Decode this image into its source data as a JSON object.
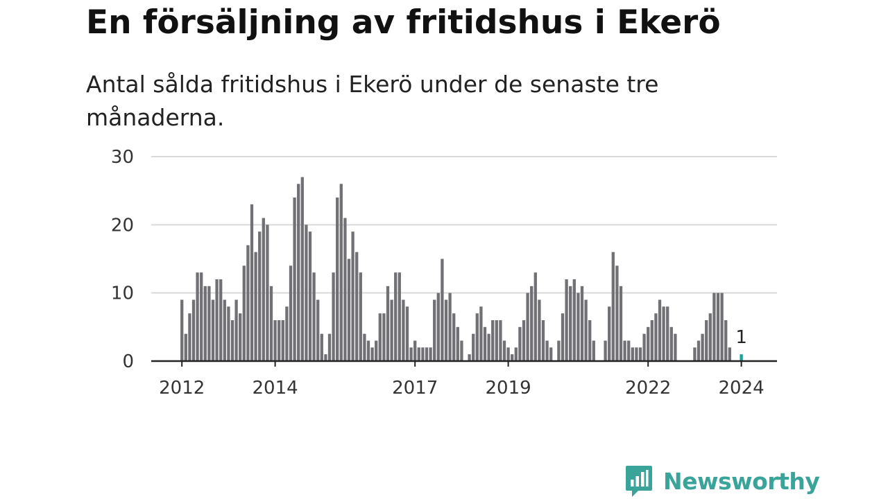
{
  "title": "En försäljning av fritidshus i Ekerö",
  "subtitle": "Antal sålda fritidshus i Ekerö under de senaste tre månaderna.",
  "brand": {
    "name": "Newsworthy",
    "icon": "newsworthy-logo-icon",
    "color": "#3aa39a"
  },
  "colors": {
    "bar": "#707075",
    "highlight": "#1aa39a",
    "grid": "#d9d9d9",
    "axis": "#222222"
  },
  "chart_data": {
    "type": "bar",
    "x_unit": "month",
    "start_month": "2012-01",
    "ylim": [
      0,
      30
    ],
    "y_ticks": [
      0,
      10,
      20,
      30
    ],
    "x_tick_labels": [
      {
        "label": "2012",
        "month": "2012-01"
      },
      {
        "label": "2014",
        "month": "2014-01"
      },
      {
        "label": "2017",
        "month": "2017-01"
      },
      {
        "label": "2019",
        "month": "2019-01"
      },
      {
        "label": "2022",
        "month": "2022-01"
      },
      {
        "label": "2024",
        "month": "2024-01"
      }
    ],
    "grid": "horizontal",
    "values": [
      9,
      4,
      7,
      9,
      13,
      13,
      11,
      11,
      9,
      12,
      12,
      9,
      8,
      6,
      9,
      7,
      14,
      17,
      23,
      16,
      19,
      21,
      20,
      11,
      6,
      6,
      6,
      8,
      14,
      24,
      26,
      27,
      20,
      19,
      13,
      9,
      4,
      1,
      4,
      13,
      24,
      26,
      21,
      15,
      19,
      16,
      13,
      4,
      3,
      2,
      3,
      7,
      7,
      11,
      9,
      13,
      13,
      9,
      8,
      2,
      3,
      2,
      2,
      2,
      2,
      9,
      10,
      15,
      9,
      10,
      7,
      5,
      3,
      0,
      1,
      4,
      7,
      8,
      5,
      4,
      6,
      6,
      6,
      3,
      2,
      1,
      2,
      5,
      6,
      10,
      11,
      13,
      9,
      6,
      3,
      2,
      0,
      3,
      7,
      12,
      11,
      12,
      10,
      11,
      9,
      6,
      3,
      0,
      0,
      3,
      8,
      16,
      14,
      11,
      3,
      3,
      2,
      2,
      2,
      4,
      5,
      6,
      7,
      9,
      8,
      8,
      5,
      4,
      0,
      0,
      0,
      0,
      2,
      3,
      4,
      6,
      7,
      10,
      10,
      10,
      6,
      2,
      0,
      0,
      1
    ],
    "highlight": {
      "index": 144,
      "label": "1"
    }
  }
}
